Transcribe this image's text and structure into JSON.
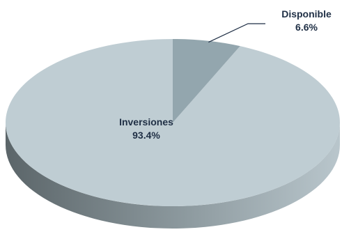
{
  "chart_data": {
    "type": "pie",
    "title": "",
    "categories": [
      "Inversiones",
      "Disponible"
    ],
    "values": [
      93.4,
      6.6
    ],
    "value_labels": [
      "93.4%",
      "6.6%"
    ],
    "style": "3d",
    "legend": "none",
    "colors": {
      "slice_inversiones_top": "#bfcdd3",
      "slice_disponible_top": "#93a6ae",
      "side_dark": "#5b6569",
      "side_light": "#b9c6cc",
      "label_text": "#1f2f45",
      "leader_line": "#1f2f45"
    }
  }
}
